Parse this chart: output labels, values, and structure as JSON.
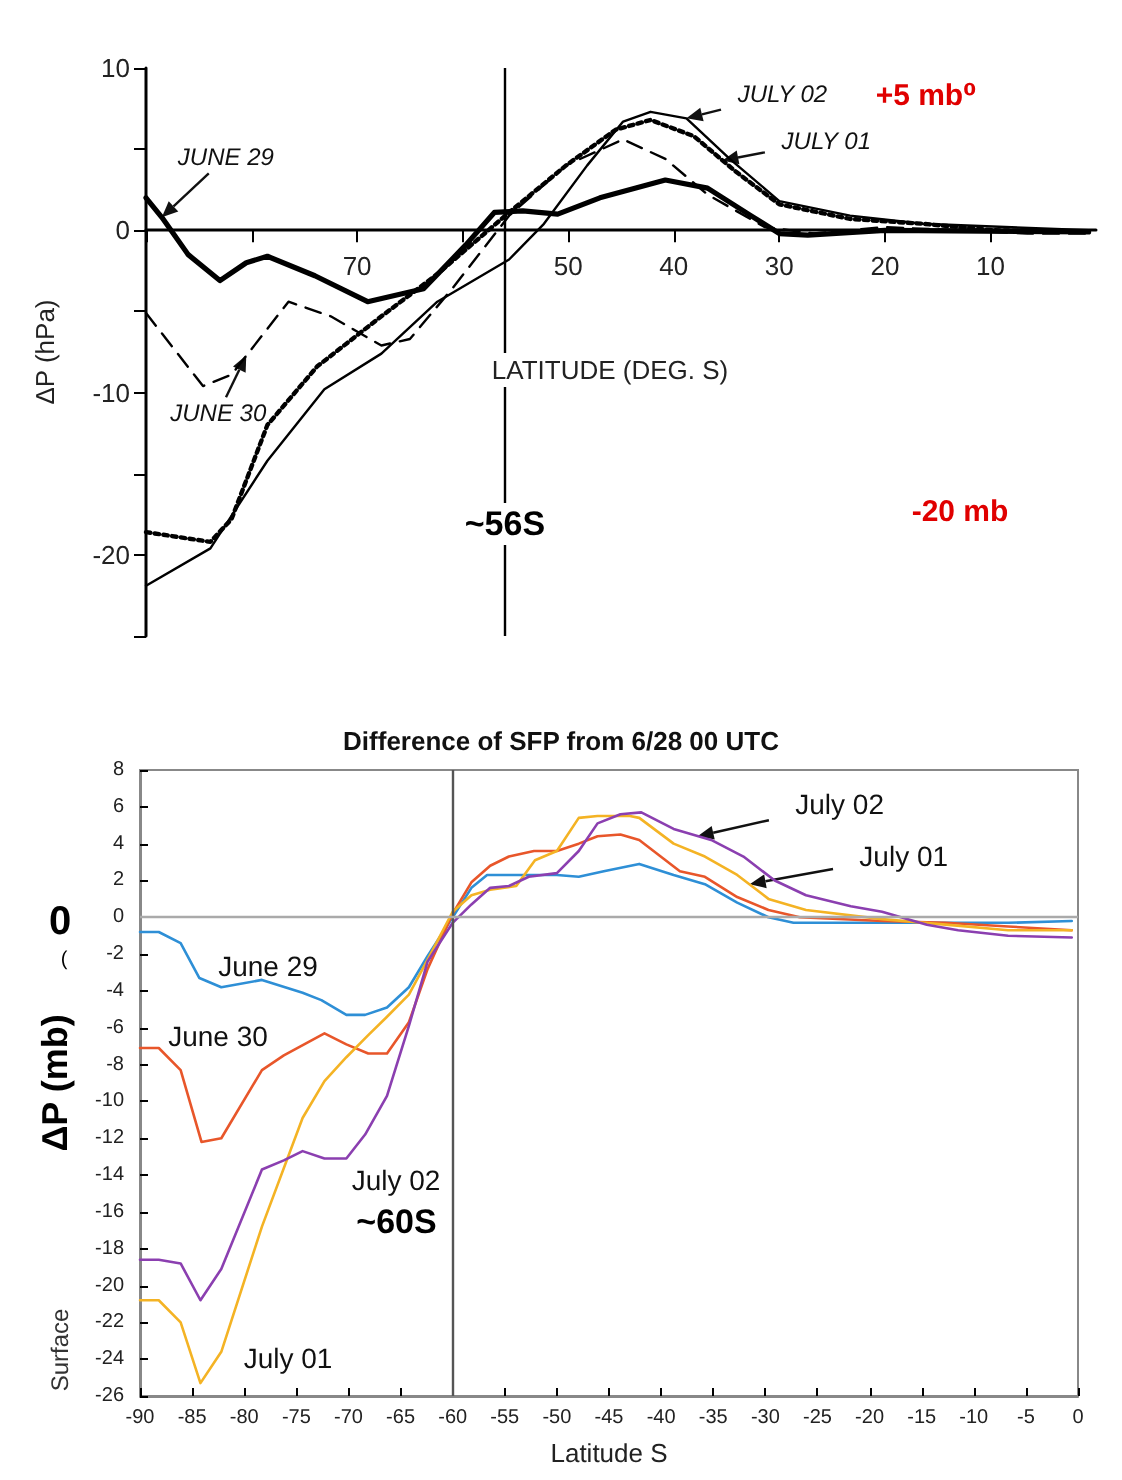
{
  "chart_data": [
    {
      "type": "line",
      "xlabel": "LATITUDE (DEG. S)",
      "ylabel": "ΔP (hPa)",
      "xlim": [
        90,
        0
      ],
      "ylim": [
        -25,
        10
      ],
      "xticks": [
        {
          "value": 90,
          "label": null
        },
        {
          "value": 80,
          "label": null
        },
        70,
        {
          "value": 60,
          "label": null
        },
        50,
        40,
        30,
        20,
        10
      ],
      "yticks": [
        10,
        {
          "value": 5,
          "label": null
        },
        0,
        {
          "value": -5,
          "label": null
        },
        -10,
        {
          "value": -15,
          "label": null
        },
        -20,
        {
          "value": -25,
          "label": null
        }
      ],
      "series": [
        {
          "color": "#000000",
          "line_style": "solid",
          "x": [
            90,
            88.5,
            86,
            83,
            80.5,
            78.5,
            74,
            69,
            63.7,
            59.7,
            57,
            54.3,
            51,
            47,
            40.8,
            36.8,
            32.7,
            30,
            27.3,
            20,
            0.7
          ],
          "values": [
            2.0,
            0.8,
            -1.5,
            -3.1,
            -2.0,
            -1.6,
            -2.8,
            -4.4,
            -3.6,
            -0.9,
            1.1,
            1.2,
            1.0,
            2.0,
            3.1,
            2.6,
            0.9,
            -0.2,
            -0.3,
            0,
            -0.1
          ]
        },
        {
          "color": "#000000",
          "line_style": "dashed",
          "x": [
            90,
            84.6,
            81.9,
            76.5,
            72.5,
            67.7,
            65,
            61,
            55.6,
            50.2,
            44.8,
            40.8,
            36.8,
            31.4,
            26.7,
            20,
            6.5,
            0.7
          ],
          "values": [
            -5.1,
            -9.6,
            -8.9,
            -4.4,
            -5.3,
            -7.1,
            -6.7,
            -3.6,
            0.9,
            4.0,
            5.6,
            4.4,
            2.2,
            0.2,
            -0.2,
            0.2,
            -0.2,
            -0.2
          ]
        },
        {
          "color": "#000000",
          "line_style": "dotted",
          "x": [
            90,
            83.9,
            81.9,
            78.5,
            73.8,
            67.7,
            62.4,
            55.6,
            50.2,
            45.5,
            42.2,
            38.1,
            34.1,
            30,
            23.3,
            16.4,
            9.7,
            0.7
          ],
          "values": [
            -18.6,
            -19.2,
            -17.8,
            -12.0,
            -8.4,
            -5.3,
            -2.7,
            1.1,
            4.0,
            6.2,
            6.8,
            5.8,
            3.6,
            1.6,
            0.7,
            0.4,
            0,
            -0.1
          ]
        },
        {
          "color": "#000000",
          "line_style": "solid",
          "x": [
            90,
            83.9,
            78.5,
            73.1,
            67.7,
            62.4,
            55.6,
            52.3,
            48.2,
            44.8,
            42.2,
            38.8,
            34.7,
            30,
            23.3,
            16.4,
            0.7
          ],
          "values": [
            -21.9,
            -19.6,
            -14.2,
            -9.8,
            -7.6,
            -4.4,
            -1.8,
            0.4,
            4.0,
            6.7,
            7.3,
            6.9,
            4.4,
            1.8,
            0.9,
            0.4,
            0
          ]
        }
      ],
      "ref_lines": [
        {
          "axis": "x",
          "value": 56,
          "label": "~56S",
          "color": "#000000"
        }
      ],
      "annotations": [
        {
          "text": "JUNE 29",
          "x": 88.5,
          "y": 0.8
        },
        {
          "text": "JUNE 30",
          "x": 80.5,
          "y": -7.7
        },
        {
          "text": "JULY 02",
          "x": 38.8,
          "y": 6.9
        },
        {
          "text": "JULY 01",
          "x": 35.4,
          "y": 4.3
        },
        "+5 mb⁰",
        "-20 mb"
      ]
    },
    {
      "type": "line",
      "title": "Difference of SFP from 6/28 00 UTC",
      "xlabel": "Latitude S",
      "ylabel": "ΔP (mb)",
      "xlim": [
        -90,
        0
      ],
      "ylim": [
        -26,
        8
      ],
      "xticks": [
        -90,
        -85,
        -80,
        -75,
        -70,
        -65,
        -60,
        -55,
        -50,
        -45,
        -40,
        -35,
        -30,
        -25,
        -20,
        -15,
        -10,
        -5,
        0
      ],
      "yticks": [
        -26,
        -24,
        -22,
        -20,
        -18,
        -16,
        -14,
        -12,
        -10,
        -8,
        -6,
        -4,
        -2,
        0,
        2,
        4,
        6,
        8
      ],
      "series": [
        {
          "color": "#2e8fd6",
          "x": [
            -90,
            -88.2,
            -86.1,
            -84.3,
            -82.2,
            -78.3,
            -74.4,
            -72.6,
            -70.2,
            -68.4,
            -66.3,
            -64.2,
            -62.4,
            -60,
            -58.2,
            -56.7,
            -55.2,
            -50,
            -47.9,
            -45.5,
            -42.1,
            -38.8,
            -35.8,
            -32.7,
            -29.7,
            -27.3,
            -18.8,
            -12.7,
            -6.7,
            -0.6
          ],
          "values": [
            -0.8,
            -0.8,
            -1.4,
            -3.3,
            -3.8,
            -3.4,
            -4.1,
            -4.5,
            -5.3,
            -5.3,
            -4.9,
            -3.8,
            -2.1,
            0,
            1.6,
            2.3,
            2.3,
            2.3,
            2.2,
            2.5,
            2.9,
            2.3,
            1.8,
            0.8,
            0,
            -0.3,
            -0.3,
            -0.3,
            -0.3,
            -0.2
          ]
        },
        {
          "color": "#e8562a",
          "x": [
            -90,
            -88.2,
            -86.1,
            -84.1,
            -82.2,
            -78.3,
            -76.2,
            -72.3,
            -70.2,
            -68.1,
            -66.3,
            -64.2,
            -62.4,
            -60,
            -58.2,
            -56.4,
            -54.6,
            -52.2,
            -50,
            -47.9,
            -46.1,
            -43.9,
            -42.1,
            -38.2,
            -35.8,
            -32.7,
            -29.7,
            -26.7,
            -18.8,
            -12.7,
            -6.7,
            -0.6
          ],
          "values": [
            -7.1,
            -7.1,
            -8.3,
            -12.2,
            -12.0,
            -8.3,
            -7.5,
            -6.3,
            -6.9,
            -7.4,
            -7.4,
            -5.7,
            -2.8,
            0.2,
            1.9,
            2.8,
            3.3,
            3.6,
            3.6,
            4.0,
            4.4,
            4.5,
            4.2,
            2.5,
            2.2,
            1.1,
            0.4,
            0,
            -0.2,
            -0.3,
            -0.5,
            -0.7
          ]
        },
        {
          "color": "#f4b324",
          "x": [
            -90,
            -88.2,
            -86.1,
            -84.2,
            -82.2,
            -78.3,
            -74.4,
            -72.3,
            -70.2,
            -68.1,
            -66.3,
            -64.2,
            -62.4,
            -60,
            -58.2,
            -56.4,
            -53.9,
            -52.1,
            -50,
            -47.9,
            -46.1,
            -43,
            -42.1,
            -38.8,
            -35.8,
            -32.7,
            -29.7,
            -26.1,
            -18.8,
            -12.7,
            -6.7,
            -0.6
          ],
          "values": [
            -20.8,
            -20.8,
            -22.0,
            -25.3,
            -23.6,
            -16.8,
            -10.9,
            -8.9,
            -7.6,
            -6.4,
            -5.4,
            -4.2,
            -2.3,
            0.3,
            1.2,
            1.5,
            1.7,
            3.1,
            3.6,
            5.4,
            5.5,
            5.5,
            5.4,
            4.0,
            3.3,
            2.3,
            1.0,
            0.4,
            -0.1,
            -0.4,
            -0.7,
            -0.7
          ]
        },
        {
          "color": "#8b3fb0",
          "x": [
            -90,
            -88.2,
            -86.1,
            -84.2,
            -82.2,
            -78.3,
            -76.2,
            -74.4,
            -72.3,
            -70.2,
            -68.4,
            -66.3,
            -64.2,
            -62.4,
            -60,
            -58.2,
            -56.4,
            -54.6,
            -52.7,
            -50,
            -47.9,
            -46.1,
            -43.9,
            -41.9,
            -38.8,
            -35.2,
            -32.1,
            -29.1,
            -26.1,
            -21.8,
            -18.8,
            -14.5,
            -11.5,
            -6.7,
            -0.6
          ],
          "values": [
            -18.6,
            -18.6,
            -18.8,
            -20.8,
            -19.1,
            -13.7,
            -13.2,
            -12.7,
            -13.1,
            -13.1,
            -11.8,
            -9.7,
            -5.9,
            -2.4,
            -0.3,
            0.7,
            1.6,
            1.7,
            2.2,
            2.4,
            3.6,
            5.1,
            5.6,
            5.7,
            4.8,
            4.2,
            3.3,
            2.0,
            1.2,
            0.6,
            0.3,
            -0.4,
            -0.7,
            -1.0,
            -1.1
          ]
        }
      ],
      "ref_lines": [
        {
          "axis": "x",
          "value": -60,
          "label": "~60S",
          "color": "#555555"
        },
        {
          "axis": "y",
          "value": 0,
          "label": null,
          "color": "#aaaaaa"
        }
      ],
      "annotations": [
        {
          "text": "July 02",
          "x": -36.5,
          "y": 4.4
        },
        {
          "text": "July 01",
          "x": -31.5,
          "y": 1.8
        },
        "June 29",
        "June 30",
        "July 02",
        "July 01",
        "Surface",
        "0",
        "("
      ]
    }
  ]
}
